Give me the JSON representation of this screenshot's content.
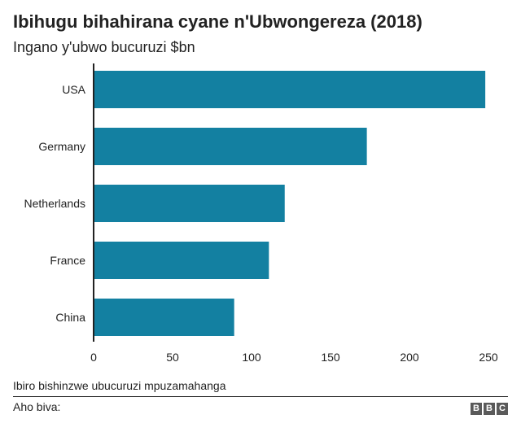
{
  "chart_data": {
    "type": "bar",
    "orientation": "horizontal",
    "title": "Ibihugu bihahirana cyane n'Ubwongereza (2018)",
    "subtitle": "Ingano y'ubwo bucuruzi $bn",
    "categories": [
      "USA",
      "Germany",
      "Netherlands",
      "France",
      "China"
    ],
    "values": [
      248,
      173,
      121,
      111,
      89
    ],
    "xlim": [
      0,
      250
    ],
    "xticks": [
      0,
      50,
      100,
      150,
      200,
      250
    ],
    "xlabel": "",
    "ylabel": "",
    "grid": false,
    "bar_color": "#1380a1"
  },
  "footer": {
    "source_text": "Ibiro bishinzwe ubucuruzi mpuzamahanga",
    "note_text": "Aho biva:",
    "logo_letters": [
      "B",
      "B",
      "C"
    ]
  }
}
